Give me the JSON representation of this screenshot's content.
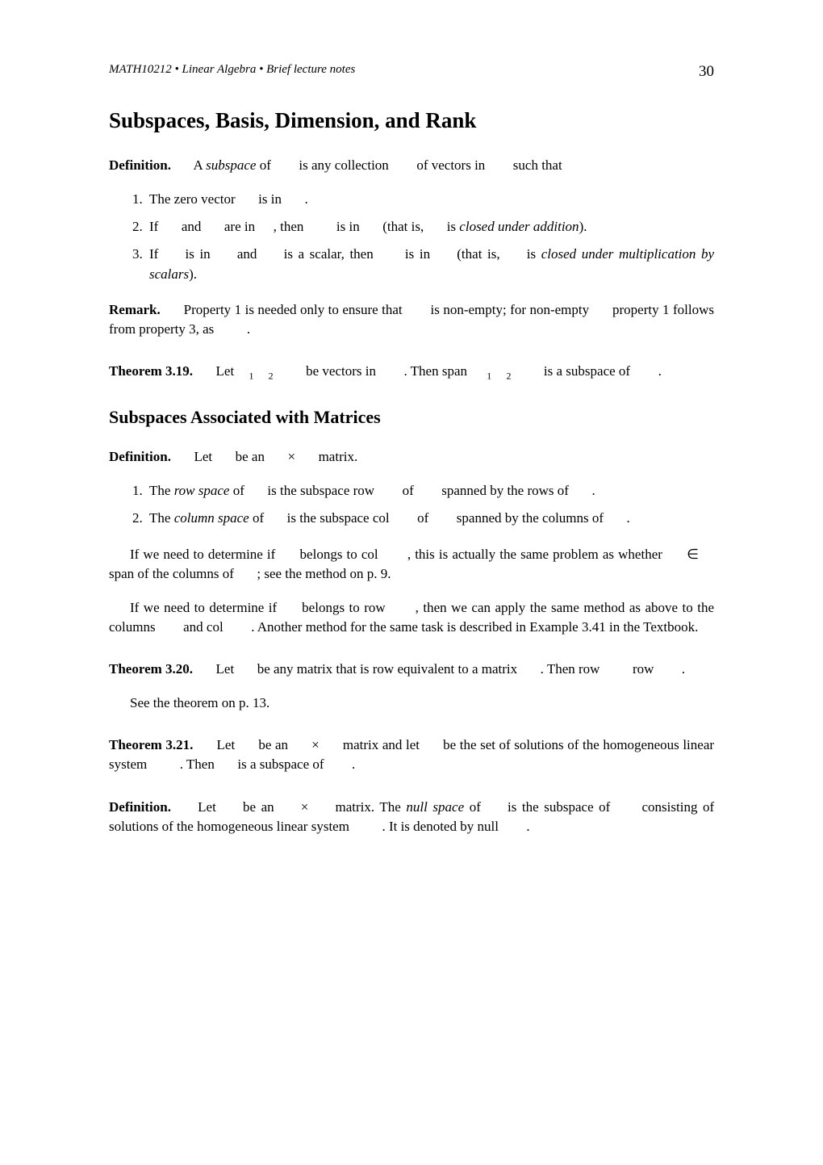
{
  "header": {
    "running": "MATH10212 • Linear Algebra • Brief lecture notes",
    "page_number": "30"
  },
  "title": "Subspaces, Basis, Dimension, and Rank",
  "def1": {
    "label": "Definition.",
    "a": "A ",
    "term": "subspace",
    "b": " of",
    "c": "is any collection",
    "d": "of vectors in",
    "e": "such that"
  },
  "list1": {
    "i1a": "The zero vector",
    "i1b": "is in",
    "i1c": ".",
    "i2a": "If",
    "i2b": "and",
    "i2c": "are in",
    "i2d": ", then",
    "i2e": "is in",
    "i2f": "(that is,",
    "i2g": "is ",
    "i2term": "closed under addition",
    "i2h": ").",
    "i3a": "If",
    "i3b": "is in",
    "i3c": "and",
    "i3d": "is a scalar, then",
    "i3e": "is in",
    "i3f": "(that is,",
    "i3g": "is ",
    "i3term": "closed under multiplication by scalars",
    "i3h": ")."
  },
  "remark": {
    "label": "Remark.",
    "a": "Property 1 is needed only to ensure that",
    "b": "is non-empty; for non-empty",
    "c": "property 1 follows from property 3, as",
    "d": "."
  },
  "thm319": {
    "label": "Theorem 3.19.",
    "a": "Let",
    "sub1": "1",
    "sub2": "2",
    "b": "be vectors in",
    "c": ". Then span",
    "d": "is a subspace of",
    "e": "."
  },
  "subsec": "Subspaces Associated with Matrices",
  "def2": {
    "label": "Definition.",
    "a": "Let",
    "b": "be an",
    "times": "×",
    "c": "matrix."
  },
  "list2": {
    "i1a": "The ",
    "i1term": "row space",
    "i1b": " of",
    "i1c": "is the subspace row",
    "i1d": "of",
    "i1e": "spanned by the rows of",
    "i1f": ".",
    "i2a": "The ",
    "i2term": "column space",
    "i2b": " of",
    "i2c": "is the subspace col",
    "i2d": "of",
    "i2e": "spanned by the columns of",
    "i2f": "."
  },
  "para1": {
    "a": "If we need to determine if",
    "b": "belongs to col",
    "c": ", this is actually the same problem as whether",
    "in": "∈",
    "d": "span of the columns of",
    "e": "; see the method on p. 9."
  },
  "para2": {
    "a": "If we need to determine if",
    "b": "belongs to row",
    "c": ", then we can apply the same method as above to the columns",
    "d": "and col",
    "e": ". Another method for the same task is described in Example 3.41 in the Textbook."
  },
  "thm320": {
    "label": "Theorem 3.20.",
    "a": "Let",
    "b": "be any matrix that is row equivalent to a matrix",
    "c": ". Then row",
    "d": "row",
    "e": "."
  },
  "see": "See the theorem on p. 13.",
  "thm321": {
    "label": "Theorem 3.21.",
    "a": "Let",
    "b": "be an",
    "times": "×",
    "c": "matrix and let",
    "d": "be the set of solutions of the homogeneous linear system",
    "e": ". Then",
    "f": "is a subspace of",
    "g": "."
  },
  "def3": {
    "label": "Definition.",
    "a": "Let",
    "b": "be an",
    "times": "×",
    "c": "matrix. The ",
    "term": "null space",
    "d": " of",
    "e": "is the subspace of",
    "f": "consisting of solutions of the homogeneous linear system",
    "g": ". It is denoted by null",
    "h": "."
  }
}
